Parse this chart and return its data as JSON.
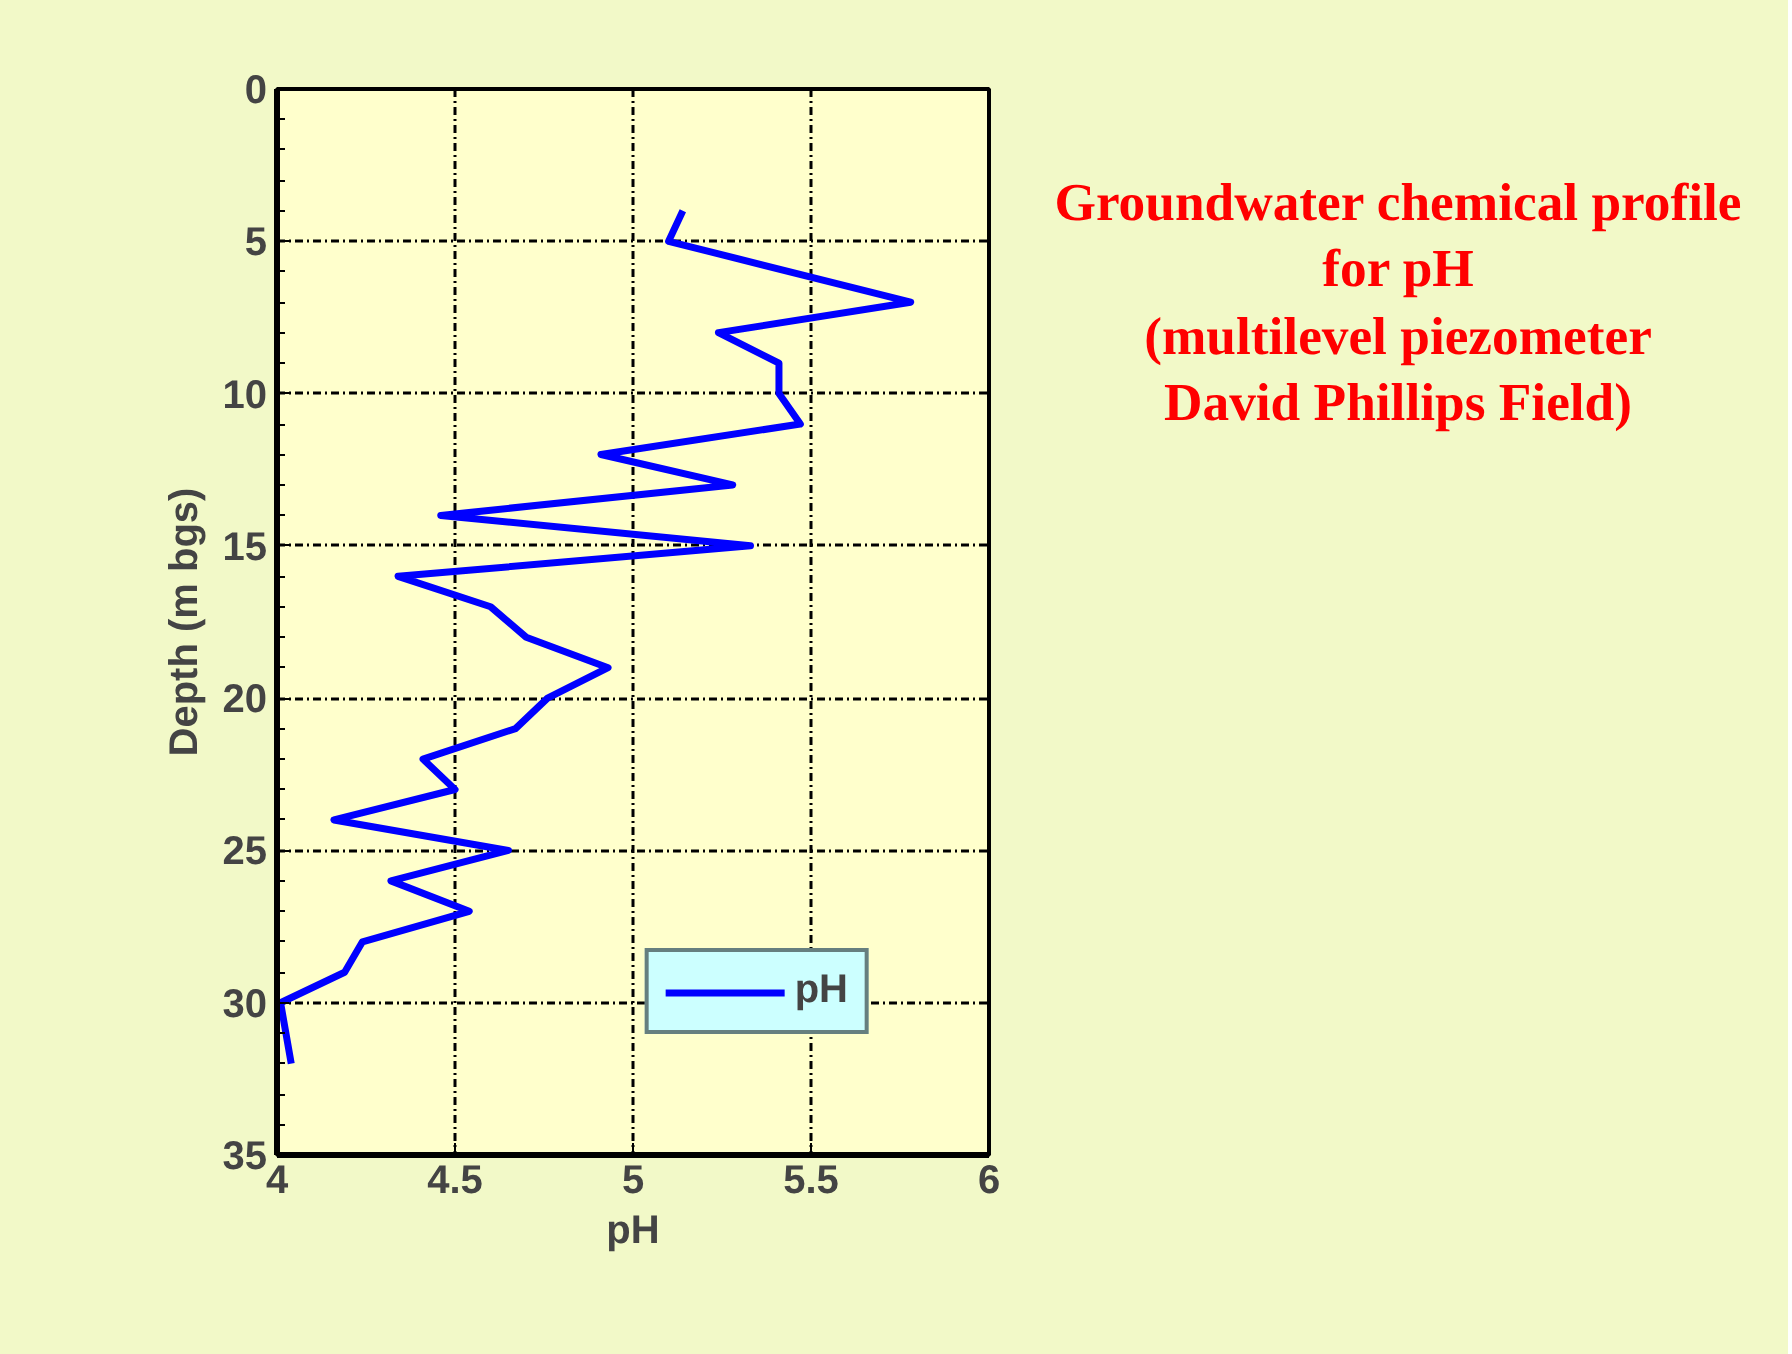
{
  "chart_data": {
    "type": "line",
    "title": "Groundwater chemical profile for pH\n(multilevel piezometer\nDavid Phillips Field)",
    "xlabel": "pH",
    "ylabel": "Depth (m bgs)",
    "series": [
      {
        "name": "pH",
        "color": "#0000ff",
        "x": [
          5.14,
          5.1,
          5.78,
          5.24,
          5.41,
          5.41,
          5.47,
          4.91,
          5.28,
          4.46,
          5.33,
          4.34,
          4.6,
          4.7,
          4.93,
          4.76,
          4.67,
          4.41,
          4.5,
          4.16,
          4.65,
          4.32,
          4.54,
          4.24,
          4.19,
          4.01,
          4.04
        ],
        "values": [
          4,
          5,
          7,
          8,
          9,
          10,
          11,
          12,
          13,
          14,
          15,
          16,
          17,
          18,
          19,
          20,
          21,
          22,
          23,
          24,
          25,
          26,
          27,
          28,
          29,
          30,
          32
        ]
      }
    ],
    "xlim": [
      4,
      6
    ],
    "xticks": [
      4,
      4.5,
      5,
      5.5,
      6
    ],
    "ylim": [
      35,
      0
    ],
    "yticks": [
      0,
      5,
      10,
      15,
      20,
      25,
      30,
      35
    ],
    "grid": true,
    "legend": "bottom right",
    "marker": "none",
    "line_style": "solid"
  }
}
